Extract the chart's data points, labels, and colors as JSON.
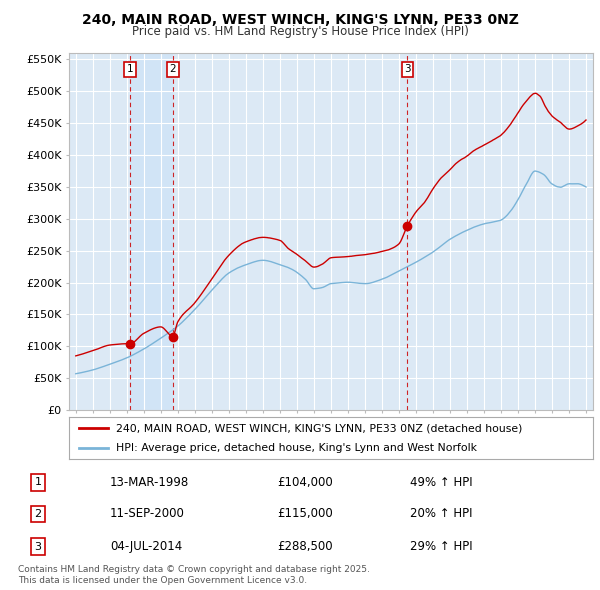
{
  "title": "240, MAIN ROAD, WEST WINCH, KING'S LYNN, PE33 0NZ",
  "subtitle": "Price paid vs. HM Land Registry's House Price Index (HPI)",
  "fig_bg_color": "#ffffff",
  "plot_bg_color": "#dce9f5",
  "grid_color": "#ffffff",
  "sale_color": "#cc0000",
  "hpi_color": "#7ab4d8",
  "shade_color": "#d0e4f7",
  "ylim": [
    0,
    560000
  ],
  "yticks": [
    0,
    50000,
    100000,
    150000,
    200000,
    250000,
    300000,
    350000,
    400000,
    450000,
    500000,
    550000
  ],
  "ytick_labels": [
    "£0",
    "£50K",
    "£100K",
    "£150K",
    "£200K",
    "£250K",
    "£300K",
    "£350K",
    "£400K",
    "£450K",
    "£500K",
    "£550K"
  ],
  "xlim_start": 1994.6,
  "xlim_end": 2025.4,
  "xticks": [
    1995,
    1996,
    1997,
    1998,
    1999,
    2000,
    2001,
    2002,
    2003,
    2004,
    2005,
    2006,
    2007,
    2008,
    2009,
    2010,
    2011,
    2012,
    2013,
    2014,
    2015,
    2016,
    2017,
    2018,
    2019,
    2020,
    2021,
    2022,
    2023,
    2024,
    2025
  ],
  "sale_dates": [
    1998.2,
    2000.7,
    2014.5
  ],
  "sale_prices": [
    104000,
    115000,
    288500
  ],
  "sale_labels": [
    "1",
    "2",
    "3"
  ],
  "legend_sale": "240, MAIN ROAD, WEST WINCH, KING'S LYNN, PE33 0NZ (detached house)",
  "legend_hpi": "HPI: Average price, detached house, King's Lynn and West Norfolk",
  "table_data": [
    [
      "1",
      "13-MAR-1998",
      "£104,000",
      "49% ↑ HPI"
    ],
    [
      "2",
      "11-SEP-2000",
      "£115,000",
      "20% ↑ HPI"
    ],
    [
      "3",
      "04-JUL-2014",
      "£288,500",
      "29% ↑ HPI"
    ]
  ],
  "footnote": "Contains HM Land Registry data © Crown copyright and database right 2025.\nThis data is licensed under the Open Government Licence v3.0."
}
